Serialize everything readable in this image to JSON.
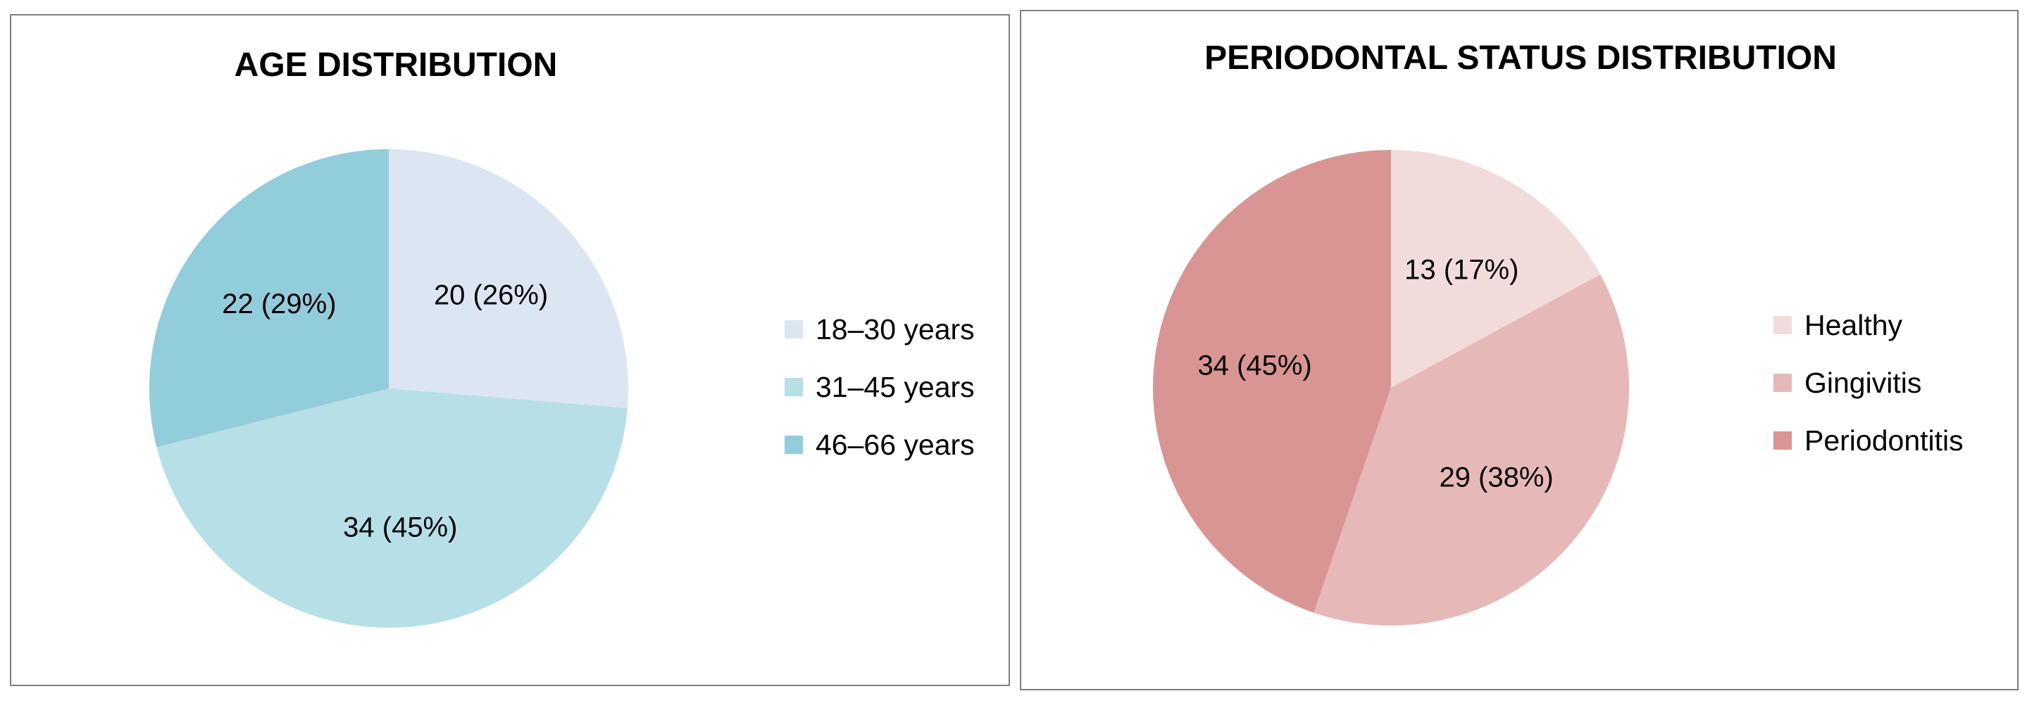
{
  "chart_data": [
    {
      "type": "pie",
      "title": "AGE DISTRIBUTION",
      "categories": [
        "18–30 years",
        "31–45 years",
        "46–66 years"
      ],
      "values": [
        20,
        34,
        22
      ],
      "data_labels": [
        "20 (26%)",
        "34 (45%)",
        "22 (29%)"
      ],
      "colors": [
        "#dce6f2",
        "#b7dfe8",
        "#92cddc"
      ],
      "legend_position": "right"
    },
    {
      "type": "pie",
      "title": "PERIODONTAL STATUS DISTRIBUTION",
      "categories": [
        "Healthy",
        "Gingivitis",
        "Periodontitis"
      ],
      "values": [
        13,
        29,
        34
      ],
      "data_labels": [
        "13 (17%)",
        "29 (38%)",
        "34 (45%)"
      ],
      "colors": [
        "#f2dcdb",
        "#e6b9b8",
        "#d99594"
      ],
      "legend_position": "right"
    }
  ]
}
